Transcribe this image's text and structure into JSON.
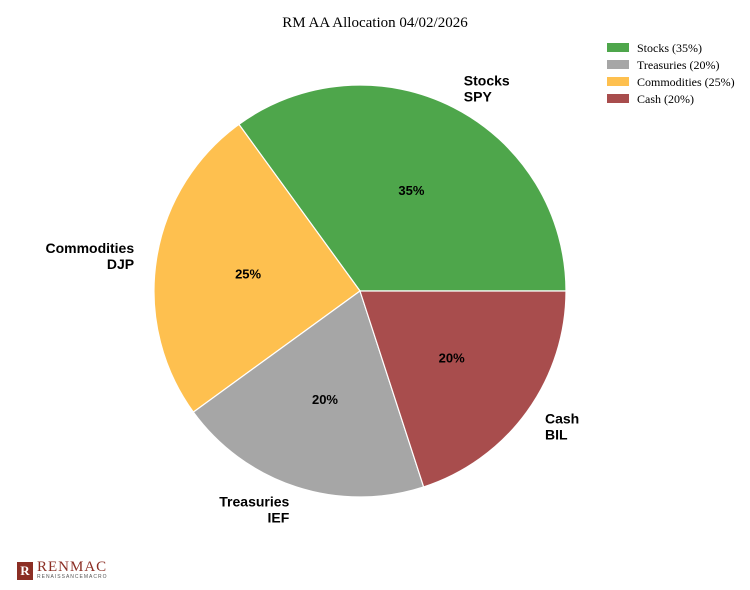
{
  "chart_data": {
    "type": "pie",
    "title": "RM AA Allocation 04/02/2026",
    "legend_position": "top-right",
    "slices": [
      {
        "legend": "Stocks (35%)",
        "name": "Stocks",
        "ticker": "SPY",
        "value": 35,
        "pct_label": "35%",
        "color": "#4ea64b"
      },
      {
        "legend": "Commodities (25%)",
        "name": "Commodities",
        "ticker": "DJP",
        "value": 25,
        "pct_label": "25%",
        "color": "#fec04f"
      },
      {
        "legend": "Treasuries (20%)",
        "name": "Treasuries",
        "ticker": "IEF",
        "value": 20,
        "pct_label": "20%",
        "color": "#a6a6a6"
      },
      {
        "legend": "Cash (20%)",
        "name": "Cash",
        "ticker": "BIL",
        "value": 20,
        "pct_label": "20%",
        "color": "#a84d4d"
      }
    ],
    "legend_order": [
      "Stocks (35%)",
      "Treasuries (20%)",
      "Commodities (25%)",
      "Cash (20%)"
    ]
  },
  "logo": {
    "mark": "R",
    "name": "RENMAC",
    "sub": "RENAISSANCEMACRO"
  }
}
